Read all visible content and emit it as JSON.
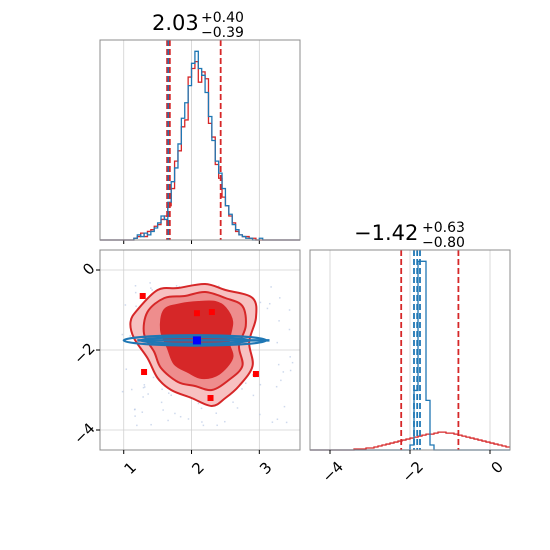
{
  "chart_data": [
    {
      "type": "histogram",
      "panel": "top-left",
      "title": {
        "value": "2.03",
        "plus": "+0.40",
        "minus": "−0.39"
      },
      "xlim": [
        0.65,
        3.6
      ],
      "xticks": [
        1,
        2,
        3
      ],
      "grid": true,
      "bins": {
        "start": 0.65,
        "width": 0.05,
        "series": [
          {
            "color": "#d62728",
            "counts": [
              0,
              0,
              0,
              0,
              0,
              0,
              0,
              0,
              0,
              0,
              1,
              2,
              4,
              2,
              5,
              6,
              8,
              9,
              12,
              14,
              20,
              30,
              46,
              52,
              66,
              70,
              95,
              100,
              104,
              92,
              98,
              94,
              68,
              60,
              44,
              36,
              25,
              20,
              14,
              10,
              5,
              3,
              2,
              2,
              1,
              1,
              0,
              0,
              0,
              0,
              0,
              0,
              0,
              0,
              0,
              0,
              0,
              0,
              0
            ]
          },
          {
            "color": "#1f77b4",
            "counts": [
              0,
              0,
              0,
              0,
              0,
              0,
              0,
              0,
              0,
              0,
              1,
              3,
              2,
              4,
              3,
              5,
              7,
              10,
              14,
              12,
              22,
              34,
              42,
              56,
              71,
              80,
              90,
              103,
              110,
              100,
              96,
              86,
              72,
              58,
              46,
              39,
              30,
              20,
              15,
              9,
              6,
              3,
              2,
              1,
              1,
              0,
              0,
              1,
              0,
              0,
              0,
              0,
              0,
              0,
              0,
              0,
              0,
              0,
              0
            ]
          }
        ]
      },
      "vlines": [
        {
          "x": 1.64,
          "color": "#d62728"
        },
        {
          "x": 2.43,
          "color": "#d62728"
        },
        {
          "x": 1.66,
          "color": "#1f77b4"
        },
        {
          "x": 1.68,
          "color": "#d62728"
        }
      ]
    },
    {
      "type": "histogram",
      "panel": "bottom-right",
      "title": {
        "value": "−1.42",
        "plus": "+0.63",
        "minus": "−0.80"
      },
      "xlim": [
        -4.5,
        0.5
      ],
      "xticks": [
        -4,
        -2,
        0
      ],
      "xtick_labels": [
        "−4",
        "−2",
        "0"
      ],
      "grid": true,
      "bins": {
        "start": -4.5,
        "width": 0.1,
        "series": [
          {
            "color": "#d62728",
            "counts": [
              0,
              0,
              0,
              0,
              0,
              0,
              0,
              0,
              0,
              0,
              0,
              1,
              1,
              1,
              2,
              2,
              3,
              4,
              5,
              6,
              7,
              8,
              9,
              10,
              11,
              12,
              13,
              14,
              15,
              16,
              16,
              17,
              18,
              18,
              17,
              17,
              16,
              15,
              14,
              13,
              12,
              11,
              10,
              9,
              8,
              7,
              6,
              5,
              4,
              3
            ]
          },
          {
            "color": "#1f77b4",
            "counts": [
              0,
              0,
              0,
              0,
              0,
              0,
              0,
              0,
              0,
              0,
              0,
              0,
              0,
              0,
              0,
              0,
              0,
              0,
              0,
              0,
              0,
              0,
              0,
              0,
              0,
              5,
              60,
              190,
              190,
              50,
              5,
              0,
              0,
              0,
              0,
              0,
              0,
              0,
              0,
              0,
              0,
              0,
              0,
              0,
              0,
              0,
              0,
              0,
              0,
              0
            ]
          }
        ]
      },
      "vlines": [
        {
          "x": -2.22,
          "color": "#d62728"
        },
        {
          "x": -0.79,
          "color": "#d62728"
        },
        {
          "x": -1.9,
          "color": "#1f77b4"
        },
        {
          "x": -1.75,
          "color": "#1f77b4"
        },
        {
          "x": -1.82,
          "color": "#1f77b4"
        }
      ]
    },
    {
      "type": "contour",
      "panel": "bottom-left",
      "xlim": [
        0.65,
        3.6
      ],
      "ylim": [
        -4.5,
        0.5
      ],
      "xticks": [
        1,
        2,
        3
      ],
      "yticks": [
        -4,
        -2,
        0
      ],
      "ytick_labels": [
        "−4",
        "−2",
        "0"
      ],
      "grid": true,
      "red_levels": [
        {
          "fill": "#f7c1c1",
          "points": [
            [
              1.2,
              -1.0
            ],
            [
              1.5,
              -0.5
            ],
            [
              1.8,
              -0.45
            ],
            [
              2.2,
              -0.35
            ],
            [
              2.5,
              -0.5
            ],
            [
              2.9,
              -0.7
            ],
            [
              2.95,
              -1.2
            ],
            [
              2.85,
              -1.8
            ],
            [
              2.9,
              -2.4
            ],
            [
              2.7,
              -2.9
            ],
            [
              2.5,
              -3.2
            ],
            [
              2.3,
              -3.4
            ],
            [
              2.0,
              -3.2
            ],
            [
              1.7,
              -3.0
            ],
            [
              1.5,
              -2.7
            ],
            [
              1.35,
              -2.2
            ],
            [
              1.15,
              -1.7
            ],
            [
              1.1,
              -1.3
            ]
          ]
        },
        {
          "fill": "#ee8d8d",
          "points": [
            [
              1.35,
              -1.05
            ],
            [
              1.6,
              -0.7
            ],
            [
              1.9,
              -0.65
            ],
            [
              2.2,
              -0.55
            ],
            [
              2.5,
              -0.7
            ],
            [
              2.75,
              -0.9
            ],
            [
              2.8,
              -1.4
            ],
            [
              2.7,
              -1.9
            ],
            [
              2.75,
              -2.4
            ],
            [
              2.55,
              -2.75
            ],
            [
              2.3,
              -3.0
            ],
            [
              2.05,
              -2.9
            ],
            [
              1.8,
              -2.8
            ],
            [
              1.55,
              -2.45
            ],
            [
              1.45,
              -2.05
            ],
            [
              1.3,
              -1.6
            ]
          ]
        },
        {
          "fill": "#d62728",
          "points": [
            [
              1.6,
              -1.0
            ],
            [
              1.85,
              -0.85
            ],
            [
              2.1,
              -0.8
            ],
            [
              2.35,
              -0.8
            ],
            [
              2.5,
              -0.95
            ],
            [
              2.6,
              -1.3
            ],
            [
              2.55,
              -1.8
            ],
            [
              2.6,
              -2.2
            ],
            [
              2.4,
              -2.6
            ],
            [
              2.15,
              -2.7
            ],
            [
              1.95,
              -2.55
            ],
            [
              1.75,
              -2.35
            ],
            [
              1.65,
              -1.95
            ],
            [
              1.55,
              -1.5
            ]
          ]
        }
      ],
      "red_points": [
        [
          2.08,
          -1.08
        ],
        [
          2.3,
          -1.05
        ],
        [
          1.3,
          -2.55
        ],
        [
          2.28,
          -3.2
        ],
        [
          1.28,
          -0.65
        ],
        [
          2.95,
          -2.6
        ]
      ],
      "blue_ellipses": [
        {
          "cx": 2.05,
          "cy": -1.76,
          "rx": 1.05,
          "ry": 0.13
        },
        {
          "cx": 2.05,
          "cy": -1.76,
          "rx": 0.8,
          "ry": 0.08
        }
      ],
      "blue_peak": [
        2.08,
        -1.76
      ],
      "contour_colors": {
        "red": "#d62728",
        "blue": "#1f77b4"
      }
    }
  ]
}
